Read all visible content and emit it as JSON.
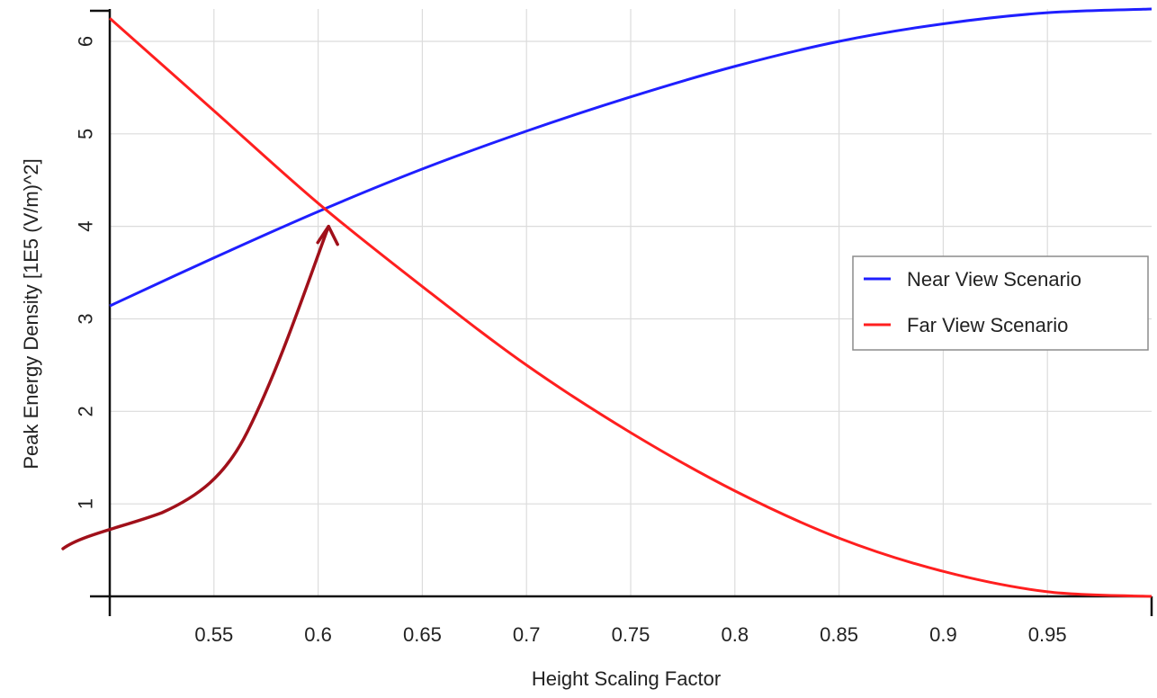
{
  "chart_data": {
    "type": "line",
    "title": "",
    "xlabel": "Height Scaling Factor",
    "ylabel": "Peak Energy Density [1E5 (V/m)^2]",
    "xlim": [
      0.5,
      1.0
    ],
    "ylim": [
      0,
      6.35
    ],
    "grid": true,
    "legend_position": "right",
    "x_ticks": [
      {
        "value": 0.55,
        "label": "0.55"
      },
      {
        "value": 0.6,
        "label": "0.6"
      },
      {
        "value": 0.65,
        "label": "0.65"
      },
      {
        "value": 0.7,
        "label": "0.7"
      },
      {
        "value": 0.75,
        "label": "0.75"
      },
      {
        "value": 0.8,
        "label": "0.8"
      },
      {
        "value": 0.85,
        "label": "0.85"
      },
      {
        "value": 0.9,
        "label": "0.9"
      },
      {
        "value": 0.95,
        "label": "0.95"
      }
    ],
    "y_ticks": [
      {
        "value": 1,
        "label": "1"
      },
      {
        "value": 2,
        "label": "2"
      },
      {
        "value": 3,
        "label": "3"
      },
      {
        "value": 4,
        "label": "4"
      },
      {
        "value": 5,
        "label": "5"
      },
      {
        "value": 6,
        "label": "6"
      }
    ],
    "series": [
      {
        "name": "Near View Scenario",
        "color": "#1f1fff",
        "x": [
          0.5,
          0.55,
          0.6,
          0.65,
          0.7,
          0.75,
          0.8,
          0.85,
          0.9,
          0.95,
          1.0
        ],
        "y": [
          3.14,
          3.66,
          4.16,
          4.62,
          5.03,
          5.4,
          5.73,
          6.0,
          6.19,
          6.31,
          6.35
        ]
      },
      {
        "name": "Far View Scenario",
        "color": "#ff1f1f",
        "x": [
          0.5,
          0.55,
          0.6,
          0.65,
          0.7,
          0.75,
          0.8,
          0.85,
          0.9,
          0.95,
          1.0
        ],
        "y": [
          6.25,
          5.25,
          4.25,
          3.35,
          2.5,
          1.77,
          1.14,
          0.63,
          0.27,
          0.05,
          0.0
        ]
      }
    ],
    "annotation": {
      "type": "arrow",
      "color": "#a0101a",
      "points_to": {
        "x": 0.605,
        "y": 4.0
      }
    }
  }
}
